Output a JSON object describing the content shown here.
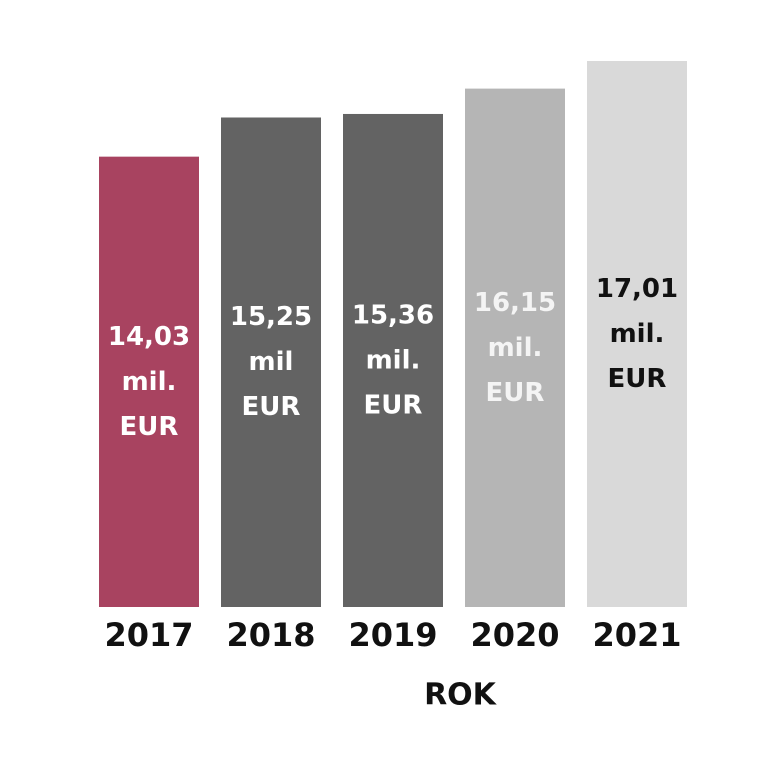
{
  "chart_data": {
    "type": "bar",
    "x_label": "ROK",
    "categories": [
      "2017",
      "2018",
      "2019",
      "2020",
      "2021"
    ],
    "values": [
      14.03,
      15.25,
      15.36,
      16.15,
      17.01
    ],
    "value_labels": [
      "14,03 mil. EUR",
      "15,25 mil EUR",
      "15,36 mil. EUR",
      "16,15 mil. EUR",
      "17,01 mil. EUR"
    ],
    "colors": [
      "#a84360",
      "#636363",
      "#636363",
      "#b5b5b5",
      "#d9d9d9"
    ],
    "value_label_colors": [
      "#ffffff",
      "#ffffff",
      "#ffffff",
      "#f4f4f4",
      "#111111"
    ]
  }
}
